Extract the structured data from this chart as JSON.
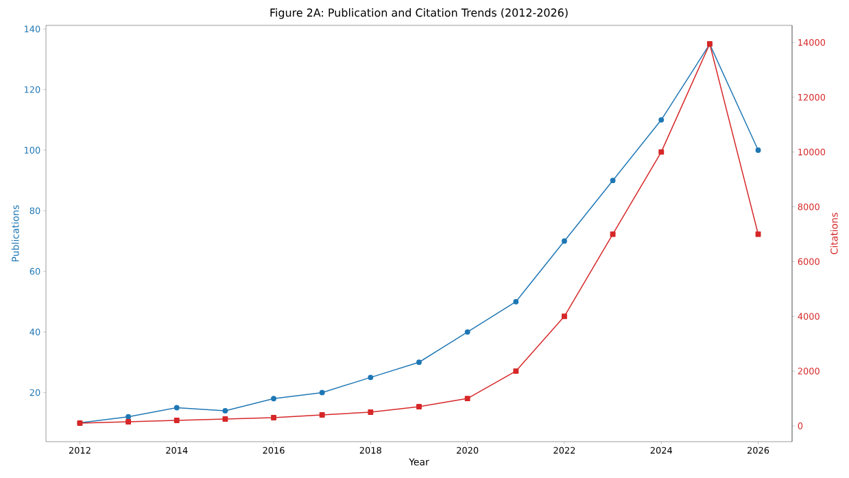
{
  "chart_data": {
    "type": "line",
    "title": "Figure 2A: Publication and Citation Trends (2012-2026)",
    "xlabel": "Year",
    "ylabel": "Publications",
    "y2label": "Citations",
    "x": [
      2012,
      2013,
      2014,
      2015,
      2016,
      2017,
      2018,
      2019,
      2020,
      2021,
      2022,
      2023,
      2024,
      2025,
      2026
    ],
    "series": [
      {
        "color": "#1f77b4",
        "marker": "circle",
        "line_style": "solid",
        "values": [
          10,
          12,
          15,
          14,
          18,
          20,
          25,
          30,
          40,
          50,
          70,
          90,
          110,
          135,
          100
        ]
      },
      {
        "color": "#d62728",
        "marker": "square",
        "line_style": "solid",
        "axis": "y2",
        "values": [
          100,
          150,
          200,
          250,
          300,
          400,
          500,
          700,
          1000,
          2000,
          4000,
          7000,
          10000,
          13950,
          7000
        ]
      }
    ],
    "xlim": [
      2011.3,
      2026.7
    ],
    "xticks": [
      2012,
      2014,
      2016,
      2018,
      2020,
      2022,
      2024,
      2026
    ],
    "ylim": [
      3.8,
      141.2
    ],
    "yticks": [
      20,
      40,
      60,
      80,
      100,
      120,
      140
    ],
    "y2lim": [
      -576,
      14625
    ],
    "y2ticks": [
      0,
      2000,
      4000,
      6000,
      8000,
      10000,
      12000,
      14000
    ],
    "grid": false
  }
}
